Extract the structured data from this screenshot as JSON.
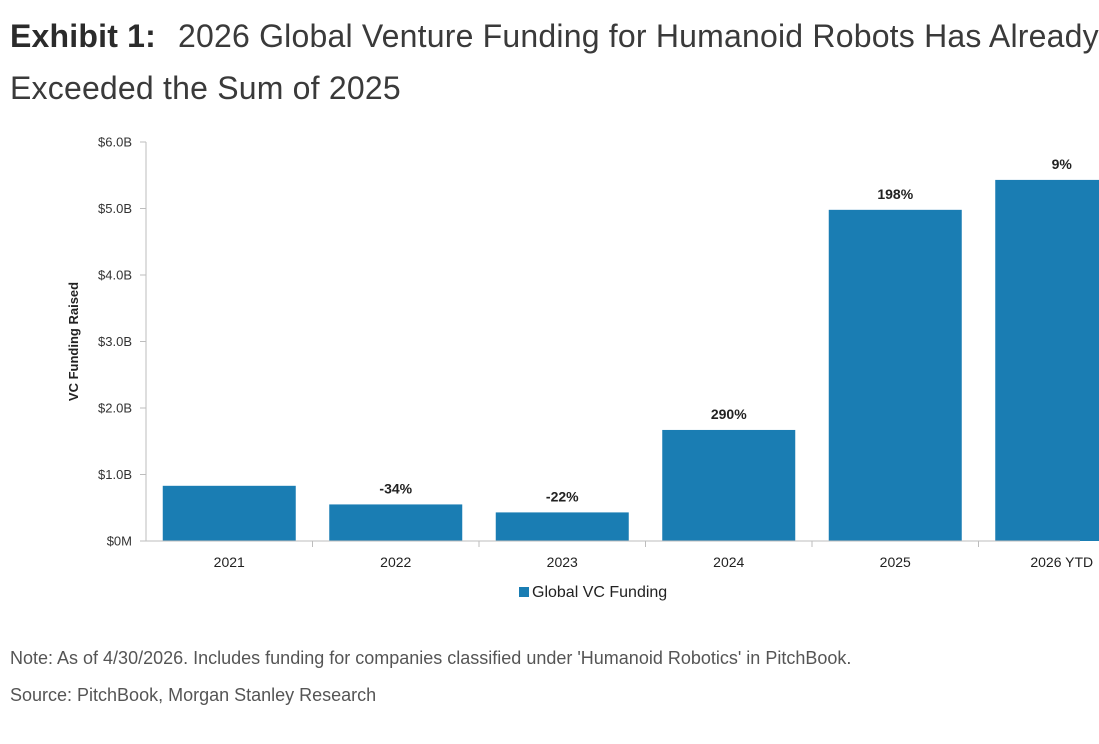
{
  "header": {
    "exhibit_label": "Exhibit 1:",
    "title_part_1": "2026 Global Venture Funding for Humanoid Robots Has Already",
    "title_part_2": "Exceeded the Sum of 2025"
  },
  "chart_data": {
    "type": "bar",
    "title": "2026 Global Venture Funding for Humanoid Robots Has Already Exceeded the Sum of 2025",
    "categories": [
      "2021",
      "2022",
      "2023",
      "2024",
      "2025",
      "2026 YTD"
    ],
    "series": [
      {
        "name": "Global VC Funding",
        "values": [
          0.83,
          0.55,
          0.43,
          1.67,
          4.98,
          5.43
        ],
        "color": "#1a7db3"
      }
    ],
    "data_labels": [
      "",
      "-34%",
      "-22%",
      "290%",
      "198%",
      "9%"
    ],
    "xlabel": "",
    "ylabel": "VC Funding Raised",
    "ylim": [
      0,
      6
    ],
    "y_ticks": [
      0,
      1,
      2,
      3,
      4,
      5,
      6
    ],
    "y_tick_labels": [
      "$0M",
      "$1.0B",
      "$2.0B",
      "$3.0B",
      "$4.0B",
      "$5.0B",
      "$6.0B"
    ],
    "grid": false,
    "legend_position": "bottom"
  },
  "footer": {
    "note": "Note: As of 4/30/2026. Includes funding for companies classified under 'Humanoid Robotics' in PitchBook.",
    "source": "Source: PitchBook, Morgan Stanley Research"
  }
}
